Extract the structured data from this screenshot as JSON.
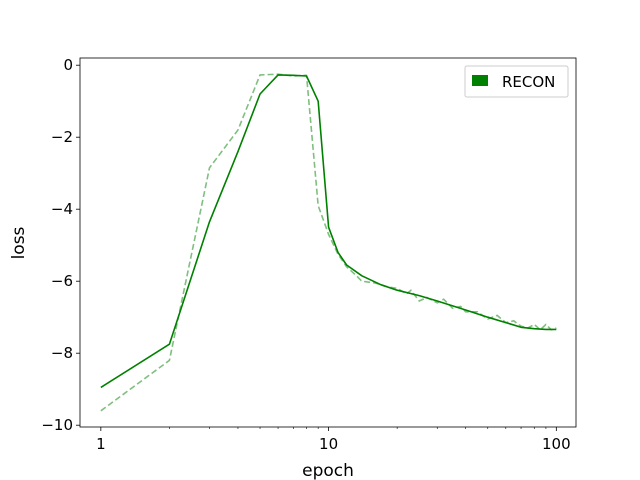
{
  "chart_data": {
    "type": "line",
    "title": "",
    "xlabel": "epoch",
    "ylabel": "loss",
    "xscale": "log",
    "xlim": [
      0.81,
      122
    ],
    "ylim": [
      -10.05,
      0.2
    ],
    "xticks": [
      1,
      10,
      100
    ],
    "xtick_labels": [
      "1",
      "10",
      "100"
    ],
    "yticks": [
      -10,
      -8,
      -6,
      -4,
      -2,
      0
    ],
    "ytick_labels": [
      "−10",
      "−8",
      "−6",
      "−4",
      "−2",
      "0"
    ],
    "grid": false,
    "legend": {
      "position": "top-right",
      "entries": [
        "RECON"
      ]
    },
    "colors": {
      "series": "#008000",
      "raw": "#008000"
    },
    "series": [
      {
        "name": "RECON",
        "style": "solid",
        "x": [
          1,
          2,
          3,
          4,
          5,
          6,
          7,
          8,
          9,
          10,
          11,
          12,
          14,
          17,
          20,
          25,
          30,
          40,
          50,
          60,
          70,
          80,
          90,
          100
        ],
        "y": [
          -8.95,
          -7.75,
          -4.35,
          -2.4,
          -0.8,
          -0.27,
          -0.28,
          -0.3,
          -1.0,
          -4.5,
          -5.2,
          -5.55,
          -5.85,
          -6.1,
          -6.25,
          -6.4,
          -6.55,
          -6.8,
          -7.0,
          -7.15,
          -7.28,
          -7.32,
          -7.34,
          -7.34
        ]
      },
      {
        "style": "dashed",
        "x": [
          1,
          2,
          3,
          4,
          5,
          6,
          7,
          8,
          9,
          10,
          11,
          12,
          13,
          14,
          16,
          18,
          20,
          22,
          23,
          25,
          27,
          30,
          32,
          35,
          38,
          40,
          45,
          50,
          55,
          60,
          65,
          70,
          75,
          80,
          85,
          90,
          95,
          100
        ],
        "y": [
          -9.6,
          -8.2,
          -2.85,
          -1.8,
          -0.27,
          -0.25,
          -0.3,
          -0.28,
          -3.9,
          -4.7,
          -5.25,
          -5.6,
          -5.8,
          -6.0,
          -6.05,
          -6.15,
          -6.2,
          -6.35,
          -6.25,
          -6.55,
          -6.45,
          -6.6,
          -6.5,
          -6.75,
          -6.7,
          -6.85,
          -6.85,
          -7.05,
          -6.95,
          -7.15,
          -7.1,
          -7.25,
          -7.3,
          -7.2,
          -7.35,
          -7.2,
          -7.35,
          -7.3
        ]
      }
    ]
  }
}
